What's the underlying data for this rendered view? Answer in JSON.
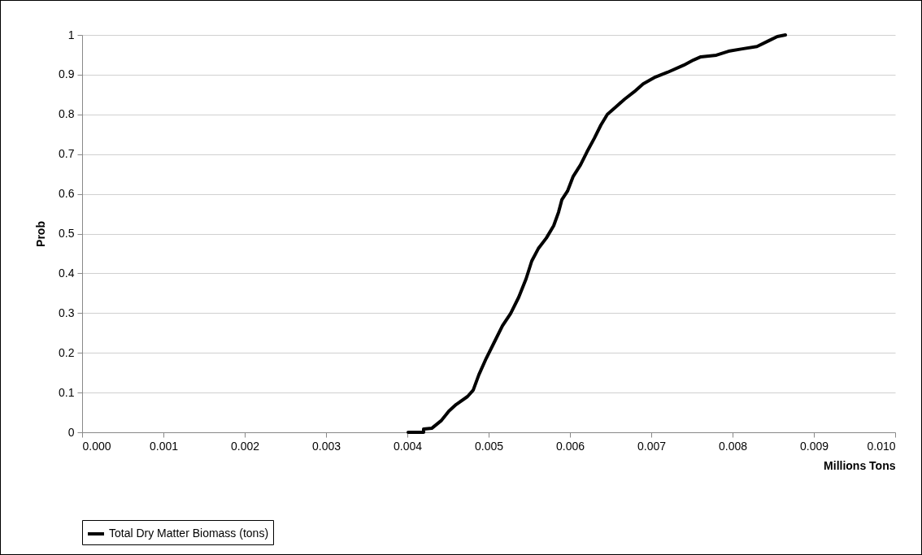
{
  "chart_data": {
    "type": "line",
    "xlabel": "Millions Tons",
    "ylabel": "Prob",
    "legend": "bottom",
    "grid": "y",
    "marker": "none",
    "line_style": "solid",
    "xlim": [
      0,
      0.01
    ],
    "ylim": [
      0,
      1
    ],
    "xticks": [
      {
        "value": 0,
        "label": "0.000"
      },
      {
        "value": 0.001,
        "label": "0.001"
      },
      {
        "value": 0.002,
        "label": "0.002"
      },
      {
        "value": 0.003,
        "label": "0.003"
      },
      {
        "value": 0.004,
        "label": "0.004"
      },
      {
        "value": 0.005,
        "label": "0.005"
      },
      {
        "value": 0.006,
        "label": "0.006"
      },
      {
        "value": 0.007,
        "label": "0.007"
      },
      {
        "value": 0.008,
        "label": "0.008"
      },
      {
        "value": 0.009,
        "label": "0.009"
      },
      {
        "value": 0.01,
        "label": "0.010"
      }
    ],
    "yticks": [
      0,
      0.1,
      0.2,
      0.3,
      0.4,
      0.5,
      0.6,
      0.7,
      0.8,
      0.9,
      1
    ],
    "series": [
      {
        "name": "Total Dry Matter Biomass (tons)",
        "color": "#000000",
        "x": [
          0.00401,
          0.0042,
          0.0042,
          0.0043,
          0.00442,
          0.00451,
          0.0046,
          0.00474,
          0.00481,
          0.00488,
          0.00497,
          0.00507,
          0.00517,
          0.00527,
          0.00537,
          0.00546,
          0.00553,
          0.00561,
          0.00571,
          0.0058,
          0.00586,
          0.0059,
          0.00597,
          0.00604,
          0.00613,
          0.00621,
          0.0063,
          0.00638,
          0.00646,
          0.00656,
          0.00667,
          0.00679,
          0.0069,
          0.00705,
          0.0072,
          0.0074,
          0.00752,
          0.00761,
          0.0078,
          0.00795,
          0.00812,
          0.0083,
          0.00845,
          0.00855,
          0.00865
        ],
        "values": [
          0,
          0,
          0.008,
          0.01,
          0.03,
          0.053,
          0.07,
          0.09,
          0.106,
          0.145,
          0.186,
          0.227,
          0.268,
          0.299,
          0.34,
          0.386,
          0.431,
          0.462,
          0.489,
          0.52,
          0.554,
          0.585,
          0.607,
          0.644,
          0.673,
          0.706,
          0.74,
          0.773,
          0.8,
          0.818,
          0.838,
          0.857,
          0.877,
          0.894,
          0.906,
          0.924,
          0.937,
          0.945,
          0.949,
          0.959,
          0.965,
          0.971,
          0.986,
          0.996,
          1
        ]
      }
    ]
  }
}
